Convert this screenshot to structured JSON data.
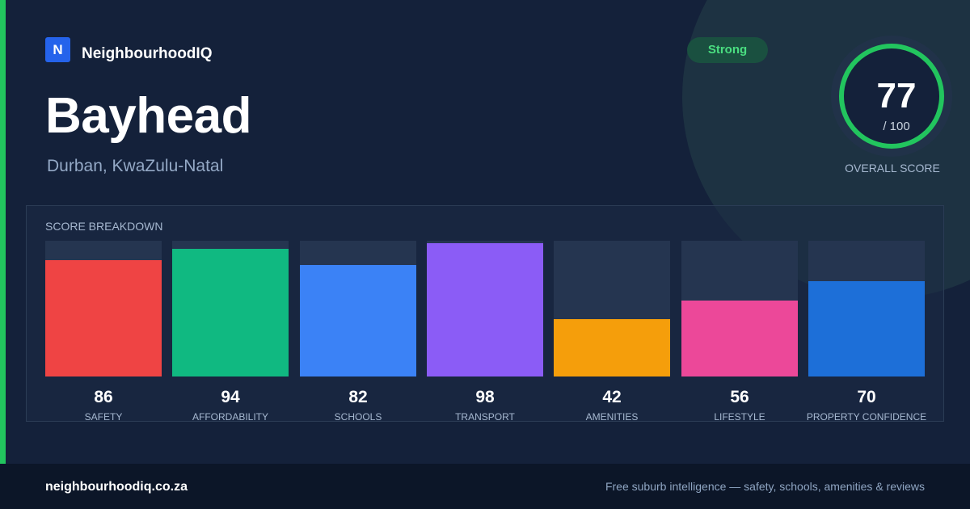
{
  "brand": {
    "logo_letter": "N",
    "name": "NeighbourhoodIQ"
  },
  "badge": {
    "label": "Strong"
  },
  "suburb": {
    "name": "Bayhead",
    "location": "Durban, KwaZulu-Natal"
  },
  "overall": {
    "value": "77",
    "max": "/ 100",
    "label": "OVERALL SCORE"
  },
  "breakdown": {
    "title": "SCORE BREAKDOWN",
    "items": [
      {
        "label": "SAFETY",
        "value": 86,
        "color": "#ef4444"
      },
      {
        "label": "AFFORDABILITY",
        "value": 94,
        "color": "#10b981"
      },
      {
        "label": "SCHOOLS",
        "value": 82,
        "color": "#3b82f6"
      },
      {
        "label": "TRANSPORT",
        "value": 98,
        "color": "#8b5cf6"
      },
      {
        "label": "AMENITIES",
        "value": 42,
        "color": "#f59e0b"
      },
      {
        "label": "LIFESTYLE",
        "value": 56,
        "color": "#ec4899"
      },
      {
        "label": "PROPERTY CONFIDENCE",
        "value": 70,
        "color": "#1d6fd8"
      }
    ]
  },
  "colors": {
    "accent": "#22c55e",
    "background": "#14213a",
    "brand": "#2563eb"
  },
  "footer": {
    "url": "neighbourhoodiq.co.za",
    "tagline": "Free suburb intelligence — safety, schools, amenities & reviews"
  }
}
